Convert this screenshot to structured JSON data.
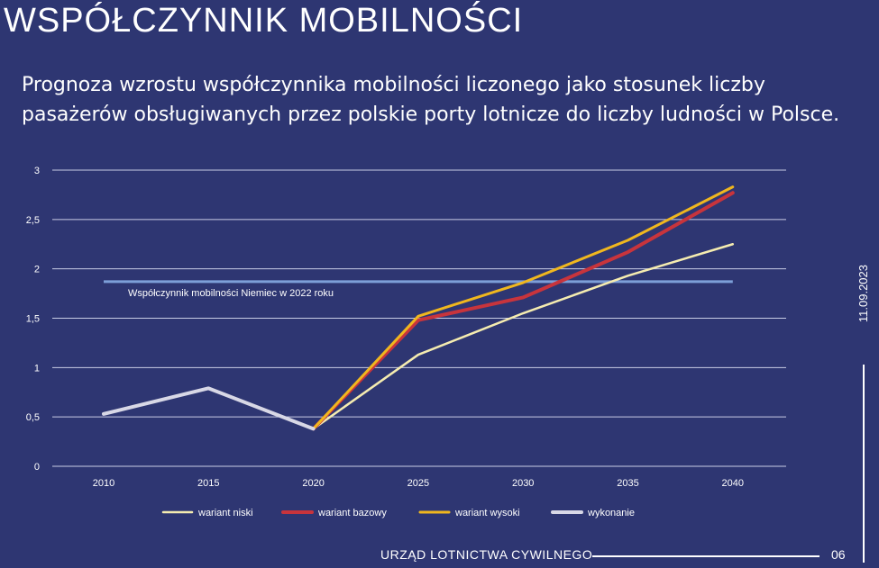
{
  "slide": {
    "title": "WSPÓŁCZYNNIK MOBILNOŚCI",
    "subtitle": "Prognoza wzrostu współczynnika mobilności liczonego jako stosunek liczby pasażerów obsługiwanych przez polskie porty lotnicze do liczby ludności w Polsce.",
    "date": "11.09.2023",
    "footer_org": "URZĄD LOTNICTWA CYWILNEGO",
    "page_number": "06"
  },
  "chart_data": {
    "type": "line",
    "ylim": [
      0,
      3
    ],
    "y_ticks": [
      "0",
      "0,5",
      "1",
      "1,5",
      "2",
      "2,5",
      "3"
    ],
    "categories": [
      "2010",
      "2015",
      "2020",
      "2025",
      "2030",
      "2035",
      "2040"
    ],
    "grid": true,
    "legend_position": "bottom",
    "series": [
      {
        "name": "wariant niski",
        "color": "#f5ecb0",
        "x": [
          "2020",
          "2025",
          "2030",
          "2035",
          "2040"
        ],
        "values": [
          0.38,
          1.13,
          1.55,
          1.93,
          2.25
        ]
      },
      {
        "name": "wariant bazowy",
        "color": "#c8343c",
        "x": [
          "2020",
          "2025",
          "2030",
          "2035",
          "2040"
        ],
        "values": [
          0.38,
          1.48,
          1.71,
          2.17,
          2.77
        ]
      },
      {
        "name": "wariant wysoki",
        "color": "#f0b71e",
        "x": [
          "2020",
          "2025",
          "2030",
          "2035",
          "2040"
        ],
        "values": [
          0.38,
          1.52,
          1.86,
          2.29,
          2.83
        ]
      },
      {
        "name": "wykonanie",
        "color": "#d8d8e6",
        "x": [
          "2010",
          "2015",
          "2020"
        ],
        "values": [
          0.53,
          0.79,
          0.38
        ]
      }
    ],
    "reference_line": {
      "label": "Współczynnik mobilności Niemiec w 2022 roku",
      "value": 1.87,
      "color": "#7d9fd8"
    }
  }
}
